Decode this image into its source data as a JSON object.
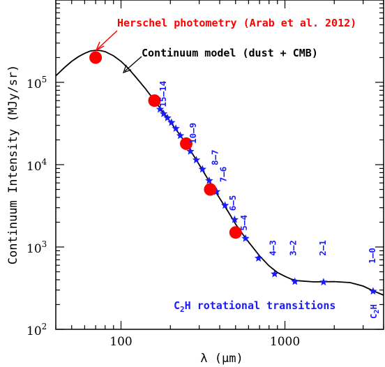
{
  "chart_data": {
    "type": "line",
    "xlabel": "λ (μm)",
    "ylabel": "Continuum Intensity (MJy/sr)",
    "x_scale": "log",
    "y_scale": "log",
    "xlim": [
      40,
      4000
    ],
    "ylim": [
      100,
      1000000
    ],
    "x_ticks": [
      {
        "value": 100,
        "label": "100"
      },
      {
        "value": 1000,
        "label": "1000"
      }
    ],
    "y_ticks": [
      {
        "value": 100,
        "label": "10",
        "exp": "2"
      },
      {
        "value": 1000,
        "label": "10",
        "exp": "3"
      },
      {
        "value": 10000,
        "label": "10",
        "exp": "4"
      },
      {
        "value": 100000,
        "label": "10",
        "exp": "5"
      }
    ],
    "grid": false,
    "series": [
      {
        "name": "Continuum model (dust + CMB)",
        "kind": "line",
        "color": "#000000",
        "points": [
          [
            40,
            120000
          ],
          [
            45,
            150000
          ],
          [
            50,
            180000
          ],
          [
            55,
            205000
          ],
          [
            60,
            225000
          ],
          [
            65,
            240000
          ],
          [
            70,
            245000
          ],
          [
            75,
            243000
          ],
          [
            80,
            236000
          ],
          [
            90,
            210000
          ],
          [
            100,
            180000
          ],
          [
            110,
            150000
          ],
          [
            120,
            123000
          ],
          [
            140,
            85000
          ],
          [
            160,
            60000
          ],
          [
            180,
            44000
          ],
          [
            200,
            33000
          ],
          [
            225,
            24000
          ],
          [
            250,
            18000
          ],
          [
            280,
            12500
          ],
          [
            300,
            10000
          ],
          [
            350,
            6000
          ],
          [
            400,
            3900
          ],
          [
            450,
            2700
          ],
          [
            500,
            1900
          ],
          [
            550,
            1450
          ],
          [
            600,
            1150
          ],
          [
            700,
            780
          ],
          [
            800,
            590
          ],
          [
            900,
            490
          ],
          [
            1000,
            440
          ],
          [
            1100,
            405
          ],
          [
            1200,
            390
          ],
          [
            1500,
            377
          ],
          [
            2000,
            380
          ],
          [
            2500,
            370
          ],
          [
            3000,
            335
          ],
          [
            3500,
            290
          ],
          [
            4000,
            260
          ]
        ]
      },
      {
        "name": "Herschel photometry (Arab et al. 2012)",
        "kind": "points",
        "marker": "circle",
        "color": "#ff0000",
        "points": [
          [
            70,
            200000
          ],
          [
            160,
            60000
          ],
          [
            250,
            18000
          ],
          [
            350,
            5000
          ],
          [
            500,
            1500
          ]
        ]
      },
      {
        "name": "C2H rotational transitions",
        "kind": "points",
        "marker": "star",
        "color": "#1a1aff",
        "points": [
          [
            3450,
            290
          ],
          [
            1720,
            375
          ],
          [
            1150,
            380
          ],
          [
            865,
            470
          ],
          [
            690,
            730
          ],
          [
            575,
            1270
          ],
          [
            493,
            2150
          ],
          [
            431,
            3200
          ],
          [
            383,
            4700
          ],
          [
            345,
            6400
          ],
          [
            314,
            8800
          ],
          [
            288,
            11400
          ],
          [
            265,
            14500
          ],
          [
            247,
            18500
          ],
          [
            230,
            22500
          ],
          [
            216,
            27500
          ],
          [
            203,
            32500
          ],
          [
            192,
            37000
          ],
          [
            182,
            41500
          ],
          [
            173,
            47000
          ]
        ]
      }
    ],
    "transition_labels": [
      {
        "text": "15–14",
        "x": 188,
        "y": 50000
      },
      {
        "text": "10–9",
        "x": 286,
        "y": 18000
      },
      {
        "text": "8–7",
        "x": 390,
        "y": 9800
      },
      {
        "text": "7–6",
        "x": 440,
        "y": 6100
      },
      {
        "text": "6–5",
        "x": 500,
        "y": 2750
      },
      {
        "text": "5–4",
        "x": 585,
        "y": 1580
      },
      {
        "text": "4–3",
        "x": 880,
        "y": 780
      },
      {
        "text": "3–2",
        "x": 1170,
        "y": 780
      },
      {
        "text": "2–1",
        "x": 1770,
        "y": 780
      },
      {
        "text": "1–0",
        "x": 3550,
        "y": 630
      }
    ],
    "annotations": {
      "herschel": "Herschel photometry (Arab et al. 2012)",
      "continuum": "Continuum model (dust + CMB)",
      "c2h_prefix": "C",
      "c2h_sub": "2",
      "c2h_suffix": "H rotational transitions",
      "c2h_corner_c": "C",
      "c2h_corner_sub": "2",
      "c2h_corner_h": "H"
    }
  }
}
